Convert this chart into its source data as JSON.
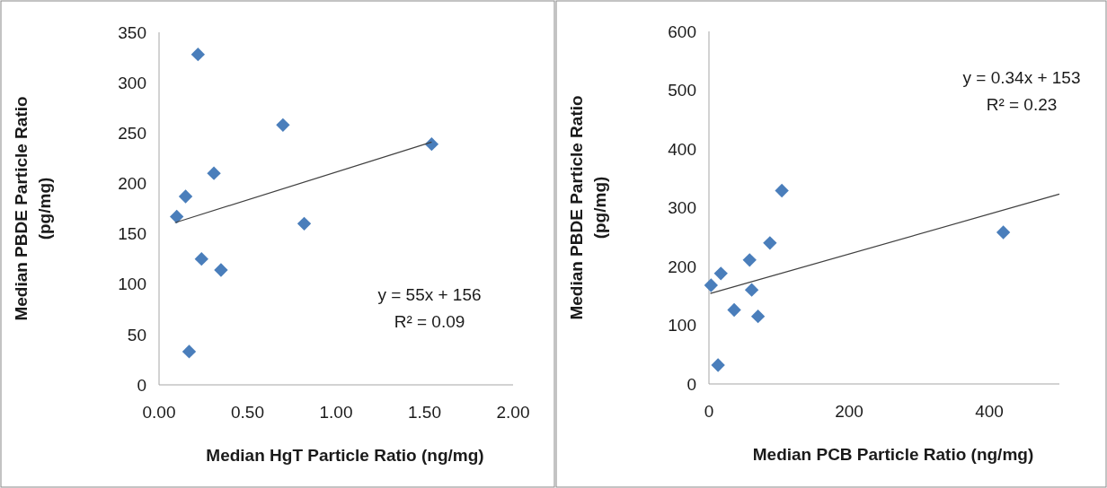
{
  "chart_data": [
    {
      "type": "scatter",
      "xlabel": "Median HgT Particle Ratio (ng/mg)",
      "ylabel": "Median PBDE Particle Ratio (pg/mg)",
      "xlim": [
        0,
        2
      ],
      "ylim": [
        0,
        350
      ],
      "xticks": [
        {
          "value": 0,
          "label": "0.00"
        },
        {
          "value": 0.5,
          "label": "0.50"
        },
        {
          "value": 1,
          "label": "1.00"
        },
        {
          "value": 1.5,
          "label": "1.50"
        },
        {
          "value": 2,
          "label": "2.00"
        }
      ],
      "yticks": [
        0,
        50,
        100,
        150,
        200,
        250,
        300,
        350
      ],
      "grid": false,
      "series": [
        {
          "marker": "diamond",
          "color": "#4a7ebb",
          "x": [
            0.1,
            0.15,
            0.22,
            0.17,
            0.24,
            0.31,
            0.35,
            0.7,
            0.82,
            1.54
          ],
          "values": [
            167,
            187,
            328,
            33,
            125,
            210,
            114,
            258,
            160,
            239
          ]
        },
        {
          "type": "line",
          "marker": "none",
          "color": "#404040",
          "x": [
            0.09,
            1.54
          ],
          "values": [
            161,
            241
          ]
        }
      ],
      "annotations": [
        {
          "text": "y = 55x + 156"
        },
        {
          "text": "R² = 0.09"
        }
      ]
    },
    {
      "type": "scatter",
      "xlabel": "Median PCB Particle Ratio (ng/mg)",
      "ylabel": "Median PBDE Particle Ratio (pg/mg)",
      "xlim": [
        0,
        500
      ],
      "ylim": [
        0,
        600
      ],
      "xticks": [
        0,
        200,
        400
      ],
      "yticks": [
        0,
        100,
        200,
        300,
        400,
        500,
        600
      ],
      "grid": false,
      "series": [
        {
          "marker": "diamond",
          "color": "#4a7ebb",
          "x": [
            3,
            17,
            13,
            36,
            58,
            61,
            70,
            87,
            104,
            420
          ],
          "values": [
            168,
            188,
            32,
            126,
            211,
            160,
            115,
            240,
            329,
            258
          ]
        },
        {
          "type": "line",
          "marker": "none",
          "color": "#404040",
          "x": [
            2,
            500
          ],
          "values": [
            154,
            323
          ]
        }
      ],
      "annotations": [
        {
          "text": "y = 0.34x + 153"
        },
        {
          "text": "R² = 0.23"
        }
      ]
    }
  ]
}
